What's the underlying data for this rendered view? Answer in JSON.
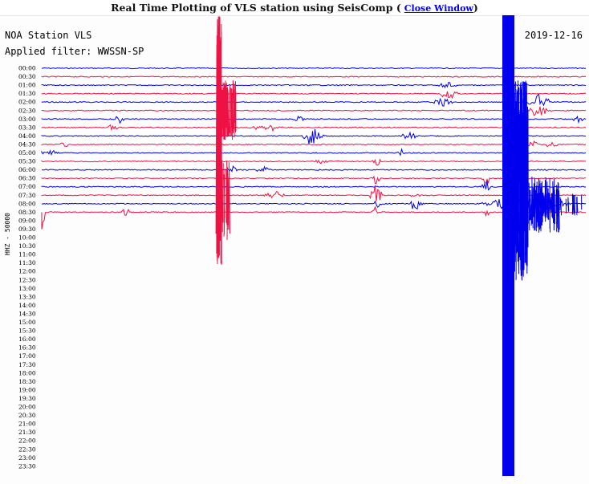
{
  "window": {
    "title": "Real Time Plotting of VLS station using SeisComp",
    "close_link": "Close Window"
  },
  "header": {
    "station": "NOA Station VLS",
    "filter": "Applied filter: WWSSN-SP",
    "date": "2019-12-16"
  },
  "channel_label": "HHZ - 50000",
  "colors": {
    "odd_trace": "#0000ee",
    "even_trace": "#ee1144"
  },
  "hours": [
    "00:00",
    "00:30",
    "01:00",
    "01:30",
    "02:00",
    "02:30",
    "03:00",
    "03:30",
    "04:00",
    "04:30",
    "05:00",
    "05:30",
    "06:00",
    "06:30",
    "07:00",
    "07:30",
    "08:00",
    "08:30",
    "09:00",
    "09:30",
    "10:00",
    "10:30",
    "11:00",
    "11:30",
    "12:00",
    "12:30",
    "13:00",
    "13:30",
    "14:00",
    "14:30",
    "15:00",
    "15:30",
    "16:00",
    "16:30",
    "17:00",
    "17:30",
    "18:00",
    "18:30",
    "19:00",
    "19:30",
    "20:00",
    "20:30",
    "21:00",
    "21:30",
    "22:00",
    "22:30",
    "23:00",
    "23:30"
  ]
}
